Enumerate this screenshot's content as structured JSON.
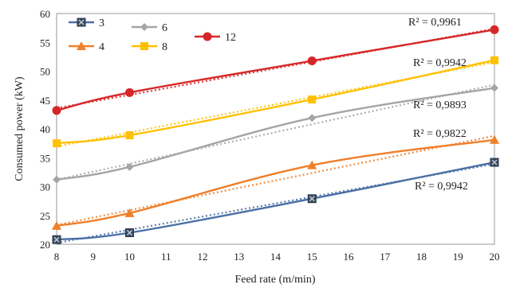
{
  "chart_data": {
    "type": "line",
    "xlabel": "Feed rate (m/min)",
    "ylabel": "Consumed power (kW)",
    "xlim": [
      8,
      20
    ],
    "ylim": [
      20,
      60
    ],
    "x_ticks": [
      8,
      9,
      10,
      11,
      12,
      13,
      14,
      15,
      16,
      17,
      18,
      19,
      20
    ],
    "y_ticks": [
      20,
      25,
      30,
      35,
      40,
      45,
      50,
      55,
      60
    ],
    "x": [
      8,
      10,
      15,
      20
    ],
    "grid": false,
    "trendlines": "dotted linear fit per series",
    "legend_position": "top-left",
    "series": [
      {
        "name": "3",
        "color": "#4a6fa5",
        "marker": "square-x",
        "values": [
          20.8,
          22.0,
          27.9,
          34.2
        ],
        "r2": "R² = 0,9942"
      },
      {
        "name": "4",
        "color": "#ef7f2a",
        "marker": "triangle",
        "values": [
          23.2,
          25.4,
          33.7,
          38.1
        ],
        "r2": "R² = 0,9822"
      },
      {
        "name": "6",
        "color": "#a5a5a5",
        "marker": "diamond",
        "values": [
          31.2,
          33.4,
          41.9,
          47.1
        ],
        "r2": "R² = 0,9893"
      },
      {
        "name": "8",
        "color": "#ffc000",
        "marker": "square",
        "values": [
          37.5,
          38.9,
          45.1,
          51.9
        ],
        "r2": "R² = 0,9942"
      },
      {
        "name": "12",
        "color": "#d62728",
        "marker": "circle",
        "values": [
          43.2,
          46.3,
          51.8,
          57.2
        ],
        "r2": "R² = 0,9961"
      }
    ]
  }
}
